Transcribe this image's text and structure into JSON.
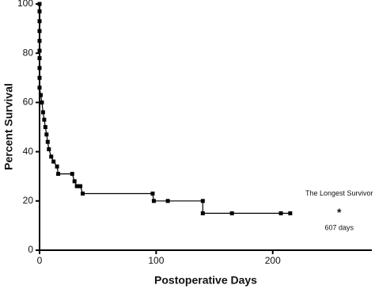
{
  "chart_data": {
    "type": "line",
    "x_label": "Postoperative Days",
    "y_label": "Percent Survival",
    "series": [
      {
        "color": "#000000",
        "x": [
          0,
          0,
          0,
          0,
          0,
          0,
          0,
          0,
          0,
          0,
          1,
          2,
          3,
          4,
          5,
          6,
          7,
          8,
          10,
          12,
          15,
          16,
          28,
          30,
          32,
          35,
          37,
          97,
          98,
          110,
          140,
          140,
          165,
          207,
          215
        ],
        "values": [
          100,
          97,
          93,
          89,
          85,
          81,
          78,
          74,
          70,
          66,
          63,
          60,
          56,
          53,
          50,
          47,
          44,
          41,
          38,
          36,
          34,
          31,
          31,
          28,
          26,
          26,
          23,
          23,
          20,
          20,
          20,
          15,
          15,
          15,
          15
        ]
      }
    ],
    "annotations": [
      {
        "text": "The Longest Survivor",
        "x": 257,
        "y": 23
      },
      {
        "text": "*",
        "x": 257,
        "y": 15
      },
      {
        "text": "607 days",
        "x": 257,
        "y": 9
      }
    ],
    "xlim": [
      0,
      285
    ],
    "xticks": [
      0,
      100,
      200
    ],
    "ylim": [
      0,
      100
    ],
    "yticks": [
      0,
      20,
      40,
      60,
      80,
      100
    ]
  }
}
